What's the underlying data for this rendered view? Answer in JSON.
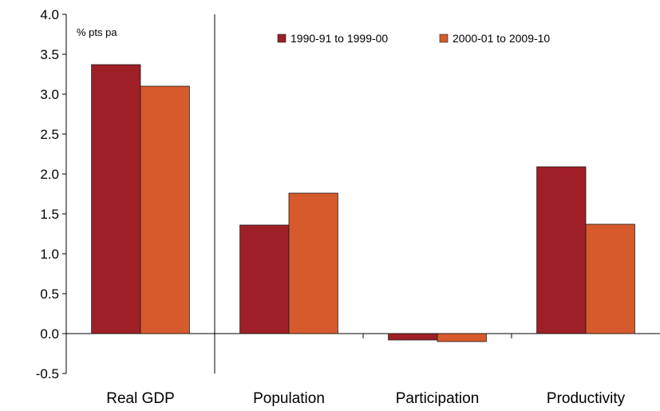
{
  "chart_data": {
    "type": "bar",
    "unit_label": "% pts pa",
    "categories": [
      "Real GDP",
      "Population",
      "Participation",
      "Productivity"
    ],
    "series": [
      {
        "name": "1990-91 to 1999-00",
        "color": "#9e1f26",
        "values": [
          3.37,
          1.36,
          -0.08,
          2.09
        ]
      },
      {
        "name": "2000-01 to 2009-10",
        "color": "#d65a2b",
        "values": [
          3.1,
          1.76,
          -0.1,
          1.37
        ]
      }
    ],
    "ylim": [
      -0.5,
      4.0
    ],
    "yticks": [
      "-0.5",
      "0.0",
      "0.5",
      "1.0",
      "1.5",
      "2.0",
      "2.5",
      "3.0",
      "3.5",
      "4.0"
    ],
    "xlabel": "",
    "ylabel": "",
    "legend_position": "top",
    "grid": false
  }
}
